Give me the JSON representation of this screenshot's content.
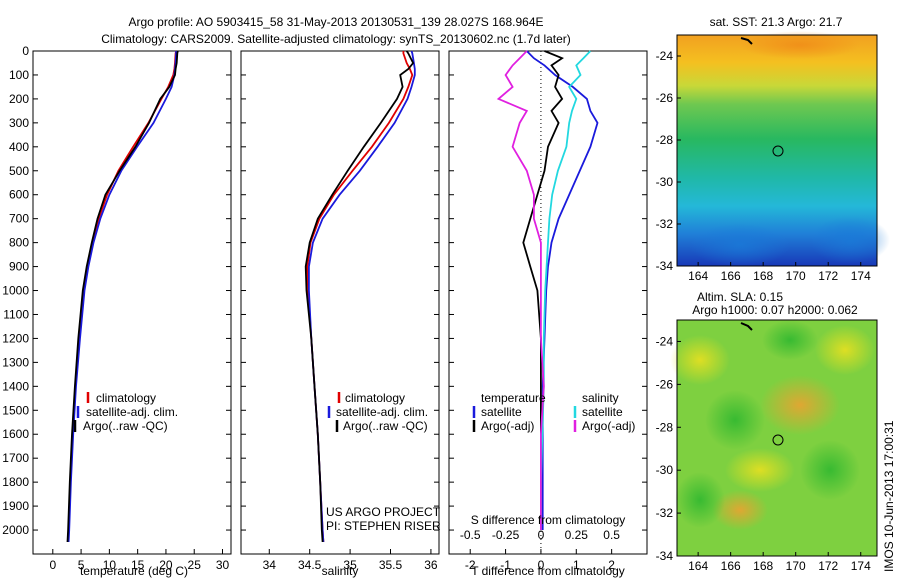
{
  "title_line1": "Argo profile: AO 5903415_58 31-May-2013 20130531_139 28.027S 168.964E",
  "title_line2": "Climatology: CARS2009. Satellite-adjusted climatology: synTS_20130602.nc (1.7d later)",
  "colors": {
    "climatology": "#e00000",
    "satellite": "#1a1adc",
    "argo": "#000000",
    "salinity_sat": "#22d8e0",
    "salinity_argo": "#e020e0"
  },
  "legend_profile": {
    "climatology": "climatology",
    "satellite": "satellite-adj. clim.",
    "argo": "Argo(..raw -QC)"
  },
  "legend_diff": {
    "temperature": "temperature",
    "salinity": "salinity",
    "satellite": "satellite",
    "argo": "Argo(-adj)"
  },
  "project_credit": {
    "line1": "US ARGO PROJECT",
    "line2": "PI: STEPHEN RISER"
  },
  "sst_map_title": "sat. SST: 21.3 Argo: 21.7",
  "sla_map_title1": "Altim. SLA: 0.15",
  "sla_map_title2": "Argo h1000: 0.07 h2000: 0.062",
  "imos_stamp": "IMOS 10-Jun-2013 17:00:31",
  "map_lat_ticks": [
    "-24",
    "-26",
    "-28",
    "-30",
    "-32",
    "-34"
  ],
  "map_lon_ticks": [
    "164",
    "166",
    "168",
    "170",
    "172",
    "174"
  ],
  "chart_data": [
    {
      "type": "line",
      "xlabel": "temperature (deg C)",
      "ylabel": "",
      "xlim": [
        -3.5,
        31.5
      ],
      "ylim": [
        2100,
        0
      ],
      "xticks": [
        "0",
        "5",
        "10",
        "15",
        "20",
        "25",
        "30"
      ],
      "yticks": [
        "0",
        "100",
        "200",
        "300",
        "400",
        "500",
        "600",
        "700",
        "800",
        "900",
        "1000",
        "1100",
        "1200",
        "1300",
        "1400",
        "1500",
        "1600",
        "1700",
        "1800",
        "1900",
        "2000"
      ],
      "y_depth": [
        0,
        10,
        50,
        75,
        100,
        150,
        200,
        300,
        400,
        500,
        600,
        700,
        800,
        900,
        1000,
        1200,
        1400,
        1600,
        1800,
        2000,
        2050
      ],
      "series": [
        {
          "name": "climatology",
          "values": [
            21.8,
            21.7,
            21.6,
            21.5,
            21.3,
            20.4,
            19.2,
            16.9,
            14.2,
            11.6,
            9.6,
            8.1,
            7.0,
            6.1,
            5.4,
            4.6,
            4.0,
            3.5,
            3.1,
            2.8,
            2.7
          ]
        },
        {
          "name": "satellite-adj. clim.",
          "values": [
            21.8,
            21.8,
            21.7,
            21.6,
            21.5,
            21.0,
            20.0,
            17.8,
            14.9,
            12.1,
            10.0,
            8.4,
            7.2,
            6.3,
            5.6,
            4.8,
            4.1,
            3.6,
            3.2,
            2.9,
            2.8
          ]
        },
        {
          "name": "Argo(..raw -QC)",
          "values": [
            22.1,
            22.0,
            21.9,
            21.7,
            21.6,
            20.6,
            19.0,
            17.0,
            14.6,
            11.8,
            9.3,
            7.9,
            6.9,
            6.0,
            5.3,
            4.5,
            3.9,
            3.4,
            3.0,
            2.7,
            2.6
          ]
        }
      ]
    },
    {
      "type": "line",
      "xlabel": "salinity",
      "ylabel": "",
      "xlim": [
        33.65,
        36.1
      ],
      "ylim": [
        2100,
        0
      ],
      "xticks": [
        "34",
        "34.5",
        "35",
        "35.5",
        "36"
      ],
      "y_depth": [
        0,
        10,
        50,
        75,
        100,
        150,
        200,
        300,
        400,
        500,
        600,
        700,
        800,
        900,
        1000,
        1200,
        1400,
        1600,
        1800,
        2000,
        2050
      ],
      "series": [
        {
          "name": "climatology",
          "values": [
            35.66,
            35.66,
            35.7,
            35.74,
            35.77,
            35.72,
            35.66,
            35.48,
            35.27,
            35.03,
            34.8,
            34.62,
            34.51,
            34.47,
            34.48,
            34.52,
            34.56,
            34.6,
            34.63,
            34.66,
            34.67
          ]
        },
        {
          "name": "satellite-adj. clim.",
          "values": [
            35.76,
            35.77,
            35.79,
            35.8,
            35.8,
            35.76,
            35.71,
            35.55,
            35.34,
            35.12,
            34.87,
            34.66,
            34.54,
            34.49,
            34.49,
            34.52,
            34.56,
            34.6,
            34.63,
            34.66,
            34.67
          ]
        },
        {
          "name": "Argo(..raw -QC)",
          "values": [
            35.7,
            35.72,
            35.78,
            35.72,
            35.62,
            35.65,
            35.58,
            35.38,
            35.17,
            34.97,
            34.78,
            34.6,
            34.5,
            34.45,
            34.46,
            34.52,
            34.56,
            34.6,
            34.63,
            34.65,
            34.66
          ]
        }
      ]
    },
    {
      "type": "line",
      "xlabel": "T difference from climatology",
      "xlabel2": "S difference from climatology",
      "xlim": [
        -2.6,
        3.0
      ],
      "ylim": [
        2100,
        0
      ],
      "xticks": [
        "-2",
        "-1",
        "0",
        "1",
        "2"
      ],
      "xticks_s": [
        "-0.5",
        "-0.25",
        "0",
        "0.25",
        "0.5"
      ],
      "y_depth": [
        0,
        30,
        60,
        100,
        150,
        200,
        250,
        300,
        400,
        500,
        600,
        700,
        800,
        900,
        1000,
        1200,
        1400,
        1600,
        1800,
        2000
      ],
      "series": [
        {
          "name": "temperature satellite",
          "values": [
            -0.4,
            -0.2,
            0.1,
            0.4,
            0.9,
            1.3,
            1.4,
            1.6,
            1.4,
            1.1,
            0.8,
            0.5,
            0.3,
            0.2,
            0.15,
            0.1,
            0.05,
            0.05,
            0.05,
            0.05
          ]
        },
        {
          "name": "temperature Argo(-adj)",
          "values": [
            0.1,
            0.6,
            0.3,
            0.5,
            0.4,
            0.6,
            0.3,
            0.5,
            0.2,
            0.1,
            -0.1,
            -0.3,
            -0.5,
            -0.3,
            -0.1,
            0.0,
            0.0,
            0.0,
            0.0,
            0.0
          ]
        },
        {
          "name": "salinity satellite",
          "values": [
            0.35,
            0.3,
            0.25,
            0.28,
            0.2,
            0.25,
            0.22,
            0.2,
            0.18,
            0.12,
            0.08,
            0.06,
            0.05,
            0.04,
            0.03,
            0.02,
            0.02,
            0.01,
            0.0,
            0.0
          ]
        },
        {
          "name": "salinity Argo(-adj)",
          "values": [
            -0.1,
            -0.15,
            -0.2,
            -0.25,
            -0.2,
            -0.3,
            -0.1,
            -0.15,
            -0.2,
            -0.1,
            -0.05,
            -0.05,
            0.0,
            0.0,
            0.0,
            0.0,
            0.02,
            0.0,
            0.0,
            0.0
          ]
        }
      ]
    }
  ]
}
